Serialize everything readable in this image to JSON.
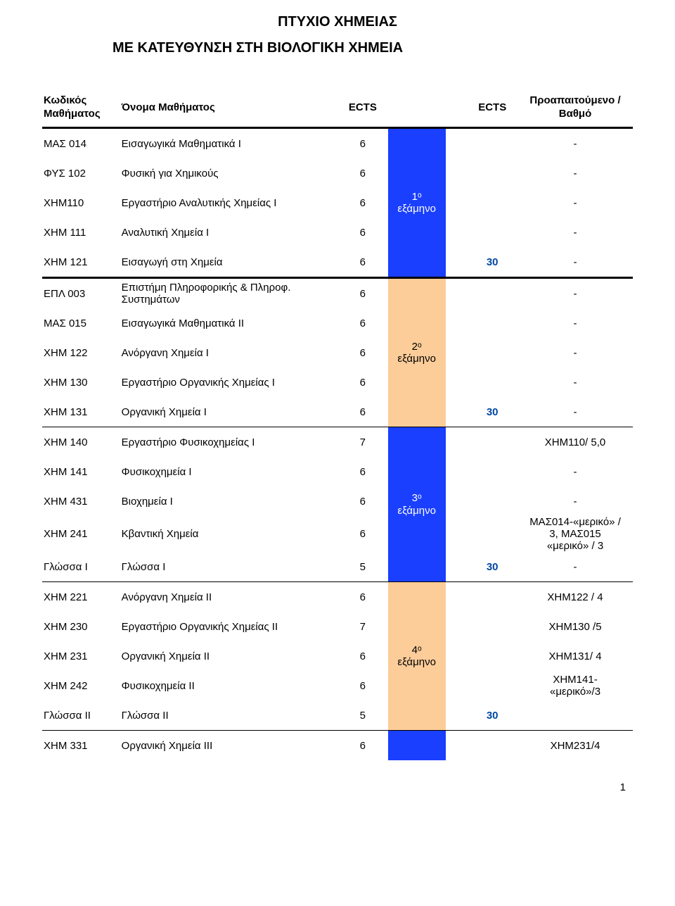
{
  "colors": {
    "blue": "#1a3fff",
    "orange": "#fccc99",
    "text": "#000000",
    "total": "#0047a3",
    "page_bg": "#ffffff"
  },
  "title": "ΠΤΥΧΙΟ ΧΗΜΕΙΑΣ",
  "subtitle": "ΜΕ ΚΑΤΕΥΘΥΝΣΗ ΣΤΗ ΒΙΟΛΟΓΙΚΗ ΧΗΜΕΙΑ",
  "page_number": "1",
  "header": {
    "code": "Κωδικός\nΜαθήματος",
    "name": "Όνομα Μαθήματος",
    "ects": "ECTS",
    "ects2": "ECTS",
    "pre": "Προαπαιτούμενο /\nΒαθμό"
  },
  "groups": [
    {
      "sep_before": "heavy",
      "rows": [
        {
          "code": "ΜΑΣ 014",
          "name": "Εισαγωγικά Μαθηματικά Ι",
          "ects": "6",
          "sem": "",
          "total": "",
          "pre": "-"
        },
        {
          "code": "ΦΥΣ 102",
          "name": "Φυσική για Χημικούς",
          "ects": "6",
          "sem": "",
          "total": "",
          "pre": "-"
        },
        {
          "code": "ΧΗΜ110",
          "name": "Εργαστήριο Αναλυτικής Χημείας Ι",
          "ects": "6",
          "sem": "1ᵒ\nεξάμηνο",
          "total": "",
          "pre": "-"
        },
        {
          "code": "ΧΗΜ 111",
          "name": "Αναλυτική Χημεία Ι",
          "ects": "6",
          "sem": "",
          "total": "",
          "pre": "-"
        },
        {
          "code": "ΧΗΜ 121",
          "name": "Εισαγωγή στη Χημεία",
          "ects": "6",
          "sem": "",
          "total": "30",
          "pre": "-"
        }
      ],
      "sep_after": "heavy",
      "sem_color": "blue"
    },
    {
      "rows": [
        {
          "code": "ΕΠΛ 003",
          "name": "Επιστήμη Πληροφορικής & Πληροφ.\nΣυστημάτων",
          "ects": "6",
          "sem": "",
          "total": "",
          "pre": "-"
        },
        {
          "code": "ΜΑΣ 015",
          "name": "Εισαγωγικά Μαθηματικά ΙΙ",
          "ects": "6",
          "sem": "",
          "total": "",
          "pre": "-"
        },
        {
          "code": "ΧΗΜ 122",
          "name": "Ανόργανη Χημεία Ι",
          "ects": "6",
          "sem": "2ᵒ\nεξάμηνο",
          "total": "",
          "pre": "-"
        },
        {
          "code": "ΧΗΜ 130",
          "name": "Εργαστήριο Οργανικής Χημείας Ι",
          "ects": "6",
          "sem": "",
          "total": "",
          "pre": "-"
        },
        {
          "code": "ΧΗΜ 131",
          "name": "Οργανική Χημεία Ι",
          "ects": "6",
          "sem": "",
          "total": "30",
          "pre": "-"
        }
      ],
      "sep_after": "light",
      "sem_color": "orange"
    },
    {
      "rows": [
        {
          "code": "ΧΗΜ 140",
          "name": "Εργαστήριο Φυσικοχημείας Ι",
          "ects": "7",
          "sem": "",
          "total": "",
          "pre": "ΧΗΜ110/ 5,0"
        },
        {
          "code": "ΧΗΜ 141",
          "name": "Φυσικοχημεία Ι",
          "ects": "6",
          "sem": "",
          "total": "",
          "pre": "-"
        },
        {
          "code": "ΧΗΜ 431",
          "name": "Βιοχημεία Ι",
          "ects": "6",
          "sem": "3ᵒ\nεξάμηνο",
          "total": "",
          "pre": "-"
        },
        {
          "code": "ΧΗΜ 241",
          "name": "Κβαντική Χημεία",
          "ects": "6",
          "sem": "",
          "total": "",
          "pre": "ΜΑΣ014-«μερικό» /\n3, ΜΑΣ015\n«μερικό» / 3"
        },
        {
          "code": "Γλώσσα Ι",
          "name": "Γλώσσα Ι",
          "ects": "5",
          "sem": "",
          "total": "30",
          "pre": "-"
        }
      ],
      "sep_after": "light",
      "sem_color": "blue"
    },
    {
      "rows": [
        {
          "code": "ΧΗΜ 221",
          "name": "Ανόργανη Χημεία ΙΙ",
          "ects": "6",
          "sem": "",
          "total": "",
          "pre": "ΧΗΜ122 / 4"
        },
        {
          "code": "ΧΗΜ 230",
          "name": "Εργαστήριο Οργανικής Χημείας ΙΙ",
          "ects": "7",
          "sem": "",
          "total": "",
          "pre": "ΧΗΜ130 /5"
        },
        {
          "code": "ΧΗΜ 231",
          "name": "Οργανική Χημεία ΙΙ",
          "ects": "6",
          "sem": "4ᵒ\nεξάμηνο",
          "total": "",
          "pre": "ΧΗΜ131/ 4"
        },
        {
          "code": "ΧΗΜ 242",
          "name": "Φυσικοχημεία ΙΙ",
          "ects": "6",
          "sem": "",
          "total": "",
          "pre": "ΧΗΜ141-\n«μερικό»/3"
        },
        {
          "code": "Γλώσσα ΙΙ",
          "name": "Γλώσσα ΙΙ",
          "ects": "5",
          "sem": "",
          "total": "30",
          "pre": ""
        }
      ],
      "sep_after": "light",
      "sem_color": "orange"
    },
    {
      "rows": [
        {
          "code": "ΧΗΜ 331",
          "name": "Οργανική Χημεία ΙΙΙ",
          "ects": "6",
          "sem": "",
          "total": "",
          "pre": "ΧΗΜ231/4"
        }
      ],
      "sem_color": "blue",
      "partial_bottom": true
    }
  ]
}
